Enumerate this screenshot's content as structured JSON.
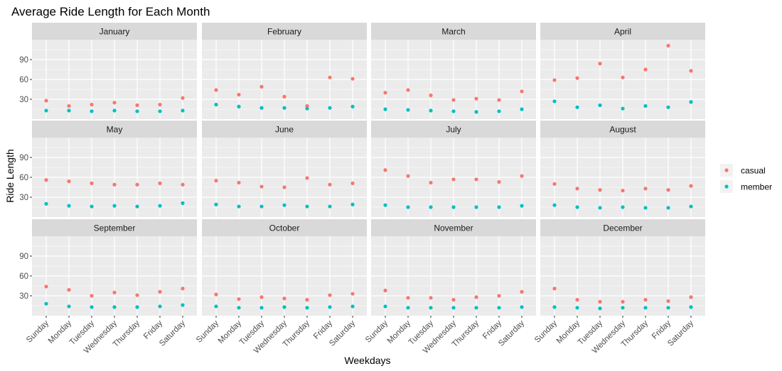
{
  "chart_data": {
    "type": "scatter",
    "title": "Average Ride Length for Each Month",
    "xlabel": "Weekdays",
    "ylabel": "Ride Length",
    "ylim": [
      0,
      120
    ],
    "yticks": [
      30,
      60,
      90
    ],
    "grid": true,
    "legend_position": "right",
    "categories": [
      "Sunday",
      "Monday",
      "Tuesday",
      "Wednesday",
      "Thursday",
      "Friday",
      "Saturday"
    ],
    "series_names": [
      "casual",
      "member"
    ],
    "colors": {
      "casual": "#F8766D",
      "member": "#00BFC4",
      "panel_bg": "#EBEBEB",
      "strip_bg": "#D9D9D9",
      "grid": "#FFFFFF"
    },
    "panels": [
      {
        "month": "January",
        "casual": [
          28,
          20,
          22,
          25,
          21,
          22,
          32
        ],
        "member": [
          13,
          13,
          12,
          13,
          12,
          12,
          13
        ]
      },
      {
        "month": "February",
        "casual": [
          44,
          37,
          49,
          34,
          20,
          63,
          61
        ],
        "member": [
          22,
          19,
          17,
          17,
          16,
          17,
          19
        ]
      },
      {
        "month": "March",
        "casual": [
          40,
          44,
          36,
          29,
          31,
          29,
          42
        ],
        "member": [
          15,
          14,
          13,
          12,
          11,
          12,
          15
        ]
      },
      {
        "month": "April",
        "casual": [
          59,
          62,
          84,
          63,
          75,
          111,
          73
        ],
        "member": [
          27,
          18,
          21,
          16,
          20,
          18,
          26
        ]
      },
      {
        "month": "May",
        "casual": [
          56,
          54,
          51,
          49,
          49,
          51,
          49
        ],
        "member": [
          20,
          17,
          16,
          17,
          16,
          17,
          21
        ]
      },
      {
        "month": "June",
        "casual": [
          55,
          52,
          46,
          45,
          59,
          49,
          51
        ],
        "member": [
          19,
          16,
          16,
          18,
          16,
          16,
          19
        ]
      },
      {
        "month": "July",
        "casual": [
          71,
          62,
          52,
          57,
          57,
          53,
          62
        ],
        "member": [
          18,
          15,
          15,
          15,
          15,
          15,
          17
        ]
      },
      {
        "month": "August",
        "casual": [
          50,
          43,
          41,
          40,
          43,
          41,
          47
        ],
        "member": [
          18,
          15,
          14,
          15,
          14,
          14,
          16
        ]
      },
      {
        "month": "September",
        "casual": [
          44,
          39,
          30,
          35,
          31,
          36,
          41
        ],
        "member": [
          18,
          14,
          13,
          13,
          13,
          14,
          16
        ]
      },
      {
        "month": "October",
        "casual": [
          32,
          25,
          28,
          26,
          24,
          31,
          33
        ],
        "member": [
          14,
          12,
          12,
          13,
          12,
          13,
          14
        ]
      },
      {
        "month": "November",
        "casual": [
          38,
          27,
          27,
          24,
          28,
          30,
          36
        ],
        "member": [
          14,
          12,
          12,
          12,
          12,
          12,
          13
        ]
      },
      {
        "month": "December",
        "casual": [
          41,
          24,
          21,
          21,
          24,
          22,
          28
        ],
        "member": [
          13,
          12,
          11,
          12,
          12,
          12,
          13
        ]
      }
    ]
  }
}
